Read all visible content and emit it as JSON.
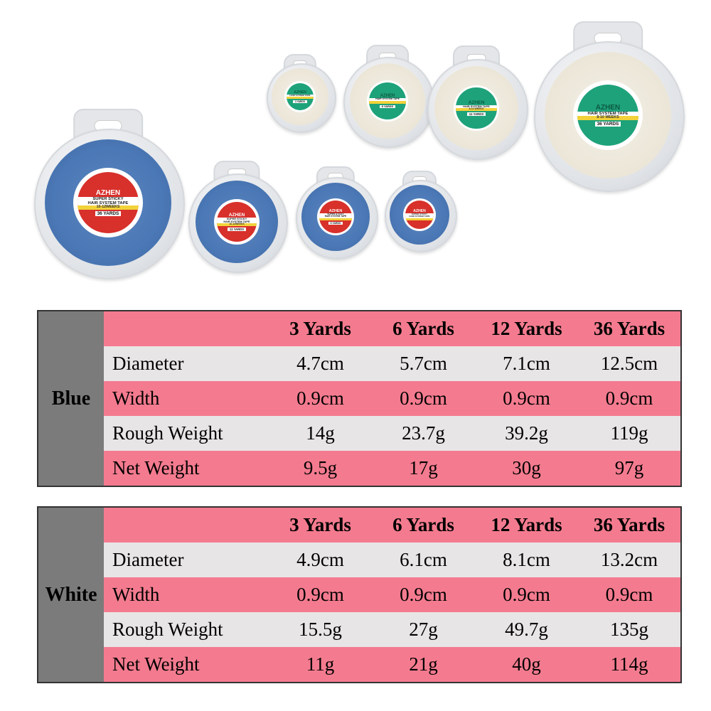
{
  "tapes": {
    "brand": "AZHEN",
    "blue": [
      {
        "line1": "SUPER STICKY",
        "line2": "HAIR SYSTEM TAPE",
        "weeks": "10-12WEEKS",
        "yards": "36 YARDS"
      },
      {
        "line1": "SUPER STICKY",
        "line2": "HAIR SYSTEM TAPE",
        "weeks": "10-12WEEKS",
        "yards": "12 YARDS"
      },
      {
        "line1": "SUPER STICKY",
        "line2": "HAIR SYSTEM TAPE",
        "weeks": "",
        "yards": "6 YARDS"
      },
      {
        "line1": "SUPER STICKY",
        "line2": "HAIR SYSTEM TAPE",
        "weeks": "",
        "yards": ""
      }
    ],
    "white": [
      {
        "line2": "HAIR SYSTEM TAPE",
        "weeks": "",
        "yards": "3 YARDS"
      },
      {
        "line2": "HAIR SYSTEM TAPE",
        "weeks": "",
        "yards": "6 YARDS"
      },
      {
        "line2": "HAIR SYSTEM TAPE",
        "weeks": "8-10 WEEKS",
        "yards": "12 YARDS"
      },
      {
        "line2": "HAIR SYSTEM TAPE",
        "weeks": "8-10 WEEKS",
        "yards": "36 YARDS"
      }
    ]
  },
  "colors": {
    "pink": "#f47b8f",
    "light_gray": "#e8e5e6",
    "side_gray": "#7b7b7b"
  },
  "tables": [
    {
      "name": "Blue",
      "headers": [
        "3 Yards",
        "6 Yards",
        "12 Yards",
        "36 Yards"
      ],
      "rows": [
        {
          "label": "Diameter",
          "values": [
            "4.7cm",
            "5.7cm",
            "7.1cm",
            "12.5cm"
          ]
        },
        {
          "label": "Width",
          "values": [
            "0.9cm",
            "0.9cm",
            "0.9cm",
            "0.9cm"
          ]
        },
        {
          "label": "Rough Weight",
          "values": [
            "14g",
            "23.7g",
            "39.2g",
            "119g"
          ]
        },
        {
          "label": "Net Weight",
          "values": [
            "9.5g",
            "17g",
            "30g",
            "97g"
          ]
        }
      ]
    },
    {
      "name": "White",
      "headers": [
        "3 Yards",
        "6 Yards",
        "12 Yards",
        "36 Yards"
      ],
      "rows": [
        {
          "label": "Diameter",
          "values": [
            "4.9cm",
            "6.1cm",
            "8.1cm",
            "13.2cm"
          ]
        },
        {
          "label": "Width",
          "values": [
            "0.9cm",
            "0.9cm",
            "0.9cm",
            "0.9cm"
          ]
        },
        {
          "label": "Rough Weight",
          "values": [
            "15.5g",
            "27g",
            "49.7g",
            "135g"
          ]
        },
        {
          "label": "Net Weight",
          "values": [
            "11g",
            "21g",
            "40g",
            "114g"
          ]
        }
      ]
    }
  ]
}
